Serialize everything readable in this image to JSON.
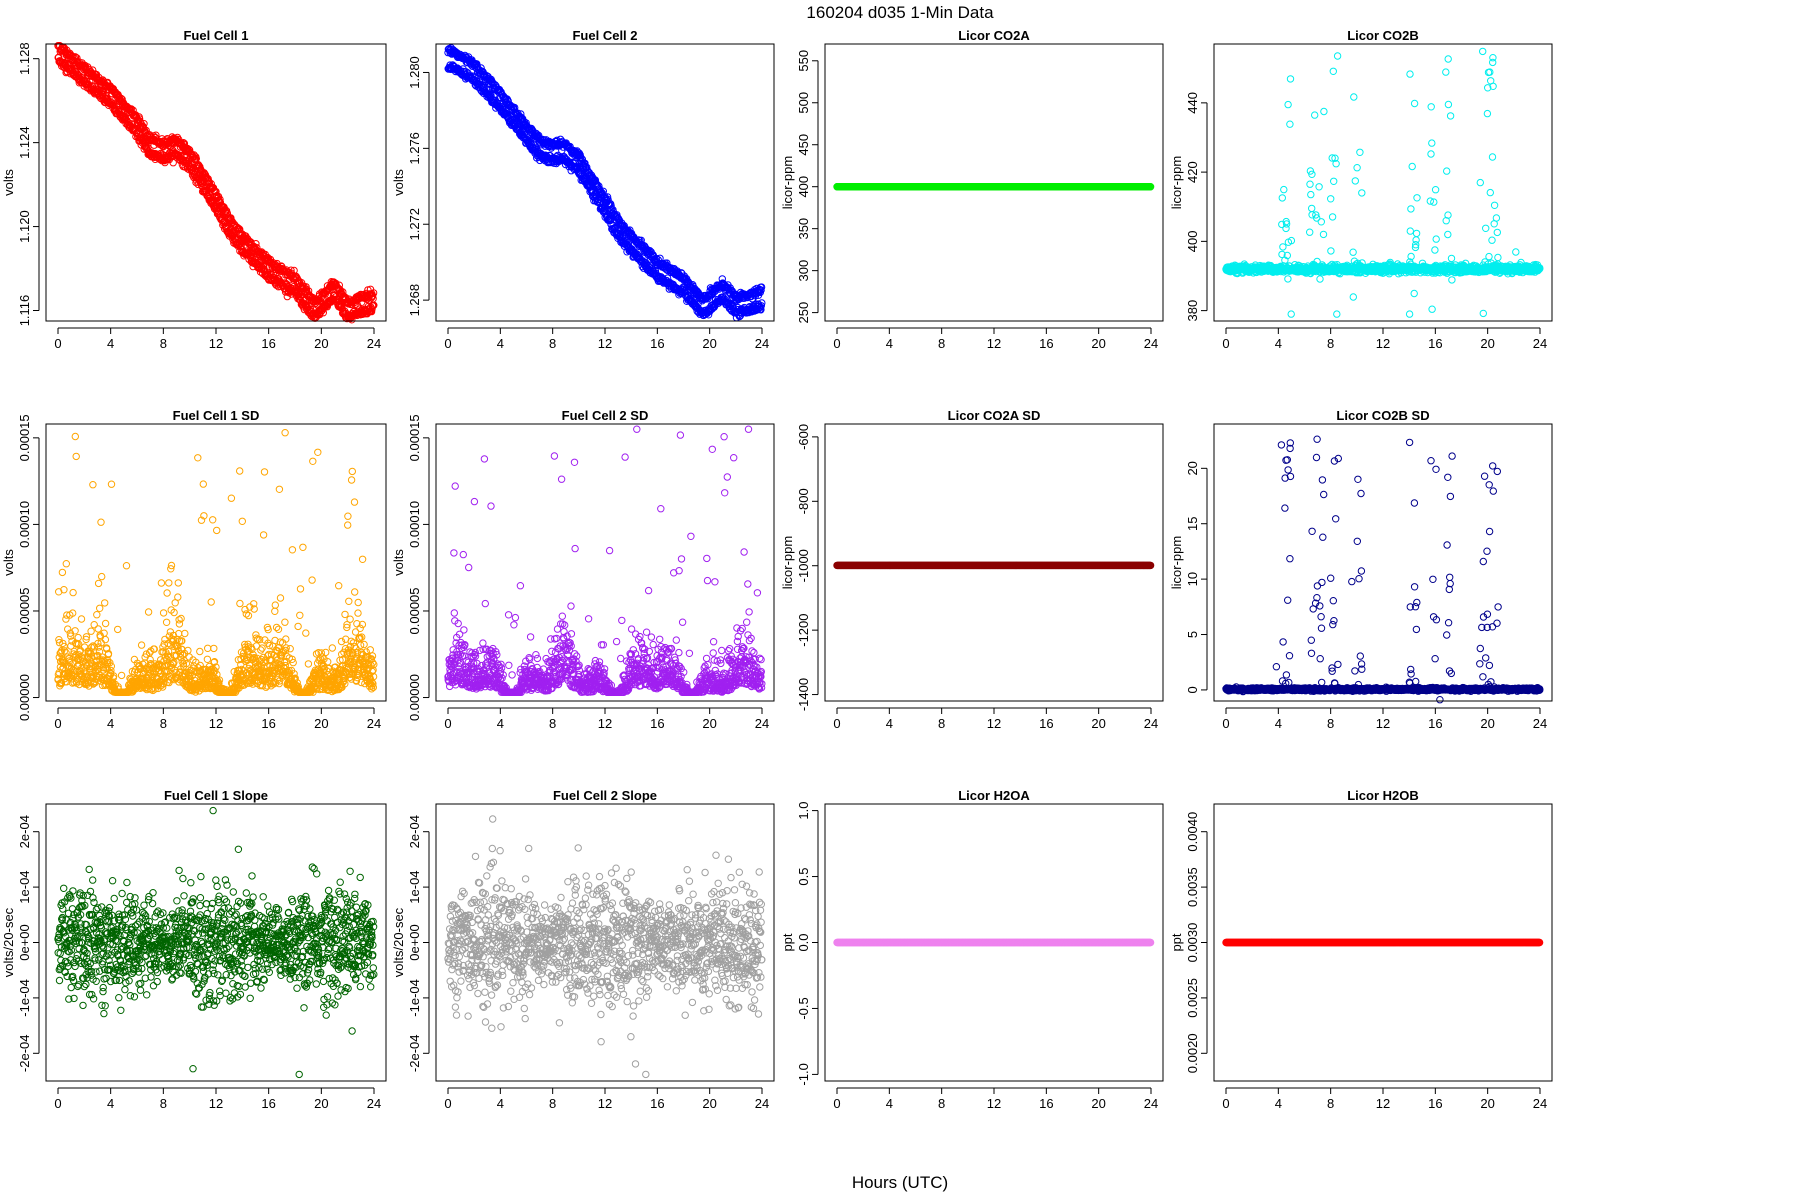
{
  "page_title": "160204   d035   1-Min Data",
  "x_caption": "Hours (UTC)",
  "chart_data": [
    {
      "type": "scatter",
      "title": "Fuel Cell 1",
      "ylabel": "volts",
      "xlim": [
        0,
        24
      ],
      "ylim": [
        1.1155,
        1.1287
      ],
      "xticks": [
        0,
        4,
        8,
        12,
        16,
        20,
        24
      ],
      "yticks": [
        1.116,
        1.12,
        1.124,
        1.128
      ],
      "ytick_labels": [
        "1.116",
        "1.120",
        "1.124",
        "1.128"
      ],
      "color": "#ff0000",
      "pattern": "decline",
      "trend": [
        [
          0,
          1.1283
        ],
        [
          2,
          1.1272
        ],
        [
          4,
          1.1262
        ],
        [
          6,
          1.1248
        ],
        [
          7,
          1.1238
        ],
        [
          8,
          1.1236
        ],
        [
          9,
          1.1238
        ],
        [
          10,
          1.1232
        ],
        [
          12,
          1.1212
        ],
        [
          13,
          1.12
        ],
        [
          14,
          1.1192
        ],
        [
          16,
          1.118
        ],
        [
          18,
          1.1172
        ],
        [
          19.5,
          1.116
        ],
        [
          21,
          1.117
        ],
        [
          22,
          1.116
        ],
        [
          24,
          1.1165
        ]
      ],
      "band": 0.0007,
      "noise": 0.0003
    },
    {
      "type": "scatter",
      "title": "Fuel Cell 2",
      "ylabel": "volts",
      "xlim": [
        0,
        24
      ],
      "ylim": [
        1.2669,
        1.2815
      ],
      "xticks": [
        0,
        4,
        8,
        12,
        16,
        20,
        24
      ],
      "yticks": [
        1.268,
        1.272,
        1.276,
        1.28
      ],
      "ytick_labels": [
        "1.268",
        "1.272",
        "1.276",
        "1.280"
      ],
      "color": "#0000ff",
      "pattern": "decline",
      "trend": [
        [
          0,
          1.2808
        ],
        [
          2,
          1.28
        ],
        [
          4,
          1.2785
        ],
        [
          6,
          1.2768
        ],
        [
          7,
          1.276
        ],
        [
          8,
          1.2758
        ],
        [
          9,
          1.2758
        ],
        [
          10,
          1.2752
        ],
        [
          12,
          1.273
        ],
        [
          13,
          1.2718
        ],
        [
          14,
          1.271
        ],
        [
          16,
          1.2696
        ],
        [
          18,
          1.2688
        ],
        [
          19.5,
          1.2676
        ],
        [
          21,
          1.2685
        ],
        [
          22,
          1.2677
        ],
        [
          24,
          1.2681
        ]
      ],
      "band": 0.0008,
      "noise": 0.0003
    },
    {
      "type": "scatter",
      "title": "Licor CO2A",
      "ylabel": "licor-ppm",
      "xlim": [
        0,
        24
      ],
      "ylim": [
        240,
        570
      ],
      "xticks": [
        0,
        4,
        8,
        12,
        16,
        20,
        24
      ],
      "yticks": [
        250,
        300,
        350,
        400,
        450,
        500,
        550
      ],
      "ytick_labels": [
        "250",
        "300",
        "350",
        "400",
        "450",
        "500",
        "550"
      ],
      "color": "#00ee00",
      "pattern": "flat",
      "value": 400
    },
    {
      "type": "scatter",
      "title": "Licor CO2B",
      "ylabel": "licor-ppm",
      "xlim": [
        0,
        24
      ],
      "ylim": [
        377,
        457
      ],
      "xticks": [
        0,
        4,
        8,
        12,
        16,
        20,
        24
      ],
      "yticks": [
        380,
        400,
        420,
        440
      ],
      "ytick_labels": [
        "380",
        "400",
        "420",
        "440"
      ],
      "color": "#00eeee",
      "pattern": "base_spikes",
      "base": 392,
      "spread": 0.5,
      "spike_frac": 0.07,
      "spike_max": 455,
      "spike_min": 379,
      "bursts": [
        [
          4.2,
          5.0
        ],
        [
          6.4,
          7.5
        ],
        [
          8.0,
          8.6
        ],
        [
          9.6,
          10.4
        ],
        [
          14.0,
          14.6
        ],
        [
          15.6,
          16.1
        ],
        [
          16.8,
          17.3
        ],
        [
          19.4,
          20.8
        ]
      ]
    },
    {
      "type": "scatter",
      "title": "Fuel Cell 1 SD",
      "ylabel": "volts",
      "xlim": [
        0,
        24
      ],
      "ylim": [
        -2e-06,
        0.000158
      ],
      "xticks": [
        0,
        4,
        8,
        12,
        16,
        20,
        24
      ],
      "yticks": [
        0,
        5e-05,
        0.0001,
        0.00015
      ],
      "ytick_labels": [
        "0.00000",
        "0.00005",
        "0.00010",
        "0.00015"
      ],
      "color": "#ffa500",
      "pattern": "sd",
      "sd_base": 1.2e-05,
      "sd_scale": 1.5e-05,
      "sd_max": 0.000153
    },
    {
      "type": "scatter",
      "title": "Fuel Cell 2 SD",
      "ylabel": "volts",
      "xlim": [
        0,
        24
      ],
      "ylim": [
        -2e-06,
        0.000158
      ],
      "xticks": [
        0,
        4,
        8,
        12,
        16,
        20,
        24
      ],
      "yticks": [
        0,
        5e-05,
        0.0001,
        0.00015
      ],
      "ytick_labels": [
        "0.00000",
        "0.00005",
        "0.00010",
        "0.00015"
      ],
      "color": "#a020f0",
      "pattern": "sd",
      "sd_base": 1e-05,
      "sd_scale": 1.8e-05,
      "sd_max": 0.000155
    },
    {
      "type": "scatter",
      "title": "Licor CO2A SD",
      "ylabel": "licor-ppm",
      "xlim": [
        0,
        24
      ],
      "ylim": [
        -1420,
        -560
      ],
      "xticks": [
        0,
        4,
        8,
        12,
        16,
        20,
        24
      ],
      "yticks": [
        -1400,
        -1200,
        -1000,
        -800,
        -600
      ],
      "ytick_labels": [
        "-1400",
        "-1200",
        "-1000",
        "-800",
        "-600"
      ],
      "color": "#8b0000",
      "pattern": "flat",
      "value": -999
    },
    {
      "type": "scatter",
      "title": "Licor CO2B SD",
      "ylabel": "licor-ppm",
      "xlim": [
        0,
        24
      ],
      "ylim": [
        -1,
        24
      ],
      "xticks": [
        0,
        4,
        8,
        12,
        16,
        20,
        24
      ],
      "yticks": [
        0,
        5,
        10,
        15,
        20
      ],
      "ytick_labels": [
        "0",
        "5",
        "10",
        "15",
        "20"
      ],
      "color": "#00008b",
      "pattern": "base_spikes",
      "base": 0.05,
      "spread": 0.06,
      "spike_frac": 0.09,
      "spike_max": 23,
      "spike_min": 0,
      "bursts": [
        [
          4.2,
          5.0
        ],
        [
          6.4,
          7.5
        ],
        [
          8.0,
          8.6
        ],
        [
          9.6,
          10.4
        ],
        [
          14.0,
          14.6
        ],
        [
          15.6,
          16.1
        ],
        [
          16.8,
          17.3
        ],
        [
          19.4,
          20.8
        ]
      ]
    },
    {
      "type": "scatter",
      "title": "Fuel Cell 1 Slope",
      "ylabel": "volts/20-sec",
      "xlim": [
        0,
        24
      ],
      "ylim": [
        -0.00025,
        0.00025
      ],
      "xticks": [
        0,
        4,
        8,
        12,
        16,
        20,
        24
      ],
      "yticks": [
        -0.0002,
        -0.0001,
        0,
        0.0001,
        0.0002
      ],
      "ytick_labels": [
        "-2e-04",
        "-1e-04",
        "0e+00",
        "1e-04",
        "2e-04"
      ],
      "color": "#006400",
      "pattern": "slope",
      "slope_scale": 4e-05
    },
    {
      "type": "scatter",
      "title": "Fuel Cell 2 Slope",
      "ylabel": "volts/20-sec",
      "xlim": [
        0,
        24
      ],
      "ylim": [
        -0.00025,
        0.00025
      ],
      "xticks": [
        0,
        4,
        8,
        12,
        16,
        20,
        24
      ],
      "yticks": [
        -0.0002,
        -0.0001,
        0,
        0.0001,
        0.0002
      ],
      "ytick_labels": [
        "-2e-04",
        "-1e-04",
        "0e+00",
        "1e-04",
        "2e-04"
      ],
      "color": "#a0a0a0",
      "pattern": "slope",
      "slope_scale": 4.5e-05
    },
    {
      "type": "scatter",
      "title": "Licor H2OA",
      "ylabel": "ppt",
      "xlim": [
        0,
        24
      ],
      "ylim": [
        -1.05,
        1.05
      ],
      "xticks": [
        0,
        4,
        8,
        12,
        16,
        20,
        24
      ],
      "yticks": [
        -1,
        -0.5,
        0,
        0.5,
        1
      ],
      "ytick_labels": [
        "-1.0",
        "-0.5",
        "0.0",
        "0.5",
        "1.0"
      ],
      "color": "#ee82ee",
      "pattern": "flat",
      "value": 0
    },
    {
      "type": "scatter",
      "title": "Licor H2OB",
      "ylabel": "ppt",
      "xlim": [
        0,
        24
      ],
      "ylim": [
        0.00175,
        0.00425
      ],
      "xticks": [
        0,
        4,
        8,
        12,
        16,
        20,
        24
      ],
      "yticks": [
        0.002,
        0.0025,
        0.003,
        0.0035,
        0.004
      ],
      "ytick_labels": [
        "0.0020",
        "0.0025",
        "0.0030",
        "0.0035",
        "0.0040"
      ],
      "color": "#ff0000",
      "pattern": "flat",
      "value": 0.003
    }
  ]
}
